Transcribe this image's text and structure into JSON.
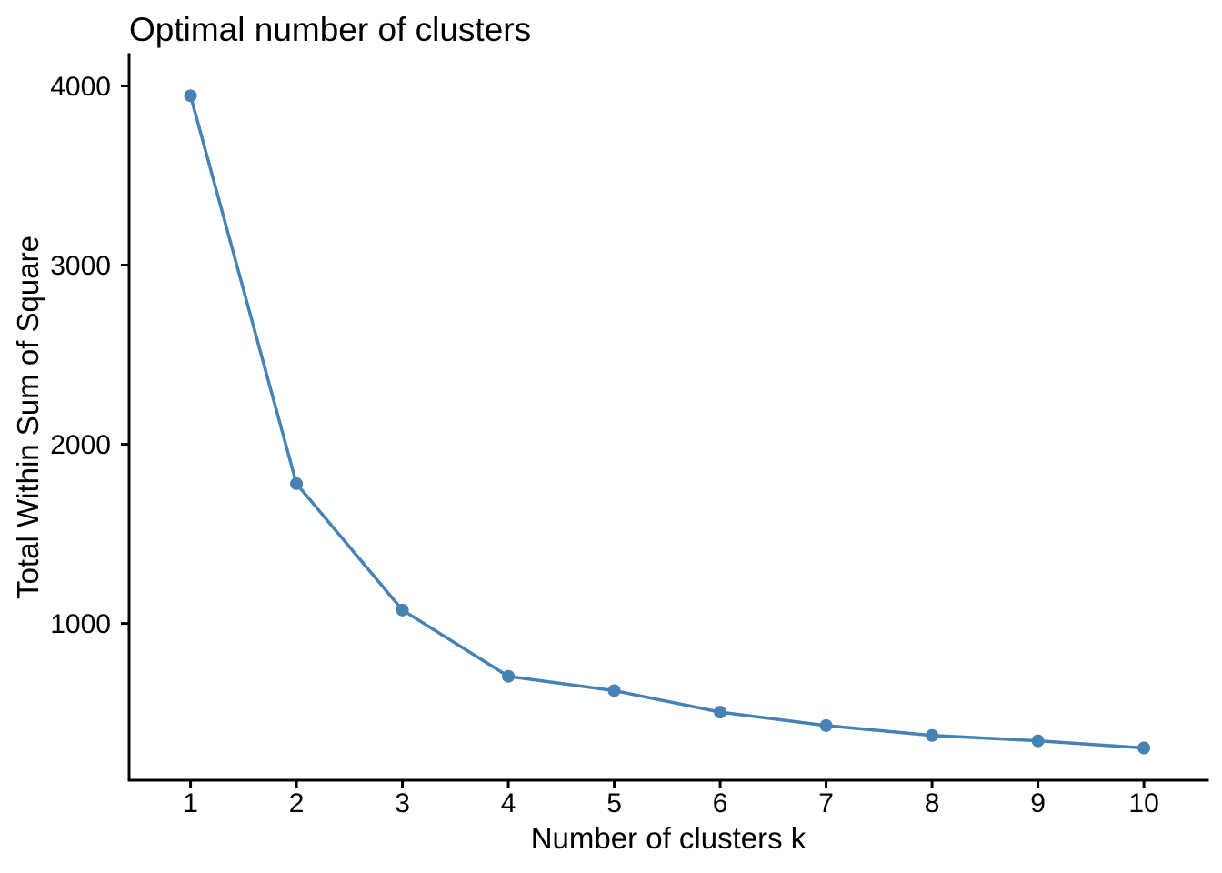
{
  "chart_data": {
    "type": "line",
    "title": "Optimal number of clusters",
    "xlabel": "Number of clusters k",
    "ylabel": "Total Within Sum of Square",
    "x": [
      1,
      2,
      3,
      4,
      5,
      6,
      7,
      8,
      9,
      10
    ],
    "y": [
      3945,
      1780,
      1075,
      705,
      625,
      505,
      430,
      375,
      345,
      305
    ],
    "x_ticks": [
      1,
      2,
      3,
      4,
      5,
      6,
      7,
      8,
      9,
      10
    ],
    "y_ticks": [
      1000,
      2000,
      3000,
      4000
    ],
    "xlim": [
      0.42,
      10.6
    ],
    "ylim": [
      125,
      4175
    ],
    "grid": false,
    "legend": "none",
    "marker": "circle",
    "colors": {
      "line": "#4682B4",
      "marker": "#4682B4",
      "axis": "#000000",
      "text": "#000000",
      "background": "#FFFFFF"
    }
  }
}
